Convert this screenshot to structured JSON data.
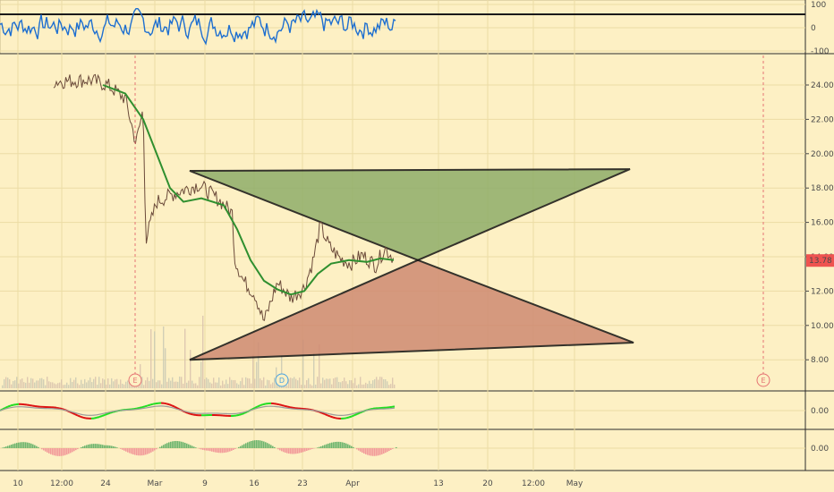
{
  "colors": {
    "background": "#fdf0c4",
    "grid": "#ecdca5",
    "rsi_line": "#1e6fd0",
    "price_line": "#6b4a3a",
    "ma_line": "#2f8f2f",
    "green_triangle_fill": "#8fae6a",
    "red_triangle_fill": "#cf8a72",
    "last_price_badge": "#ef5350",
    "earnings_marker": "#e57373",
    "dividend_marker": "#4aa3e0",
    "osc_bull": "#22dd22",
    "osc_bear": "#dd1111",
    "hist_up": "#6db56d",
    "hist_down": "#f29a9a"
  },
  "top_panel": {
    "tick_labels": [
      "100",
      "0",
      "-100"
    ],
    "tick_values": [
      100,
      0,
      -100
    ],
    "overbought_level": 80
  },
  "main_panel": {
    "price_ticks": [
      "24.00",
      "22.00",
      "20.00",
      "18.00",
      "16.00",
      "14.00",
      "12.00",
      "10.00",
      "8.00"
    ],
    "price_tick_values": [
      24,
      22,
      20,
      18,
      16,
      14,
      12,
      10,
      8
    ],
    "last_price": "13.78",
    "last_price_value": 13.78,
    "event_markers": [
      {
        "label": "E",
        "type": "earnings",
        "date_index": 0
      },
      {
        "label": "D",
        "type": "dividend",
        "date_index": 1
      },
      {
        "label": "E",
        "type": "earnings",
        "date_index": 2
      }
    ],
    "drawings": {
      "green_triangle": {
        "upper_left": [
          0,
          19.0
        ],
        "upper_right": [
          1,
          19.1
        ],
        "apex_price": 13.8
      },
      "red_triangle": {
        "lower_left": [
          0,
          8.0
        ],
        "lower_right": [
          1,
          9.0
        ],
        "apex_price": 13.8
      }
    }
  },
  "osc_panel": {
    "tick_label": "0.00",
    "tick_value": 0
  },
  "hist_panel": {
    "tick_label": "0.00",
    "tick_value": 0
  },
  "x_axis": {
    "labels": [
      "10",
      "12:00",
      "24",
      "Mar",
      "9",
      "16",
      "23",
      "Apr",
      "13",
      "20",
      "12:00",
      "May"
    ]
  }
}
